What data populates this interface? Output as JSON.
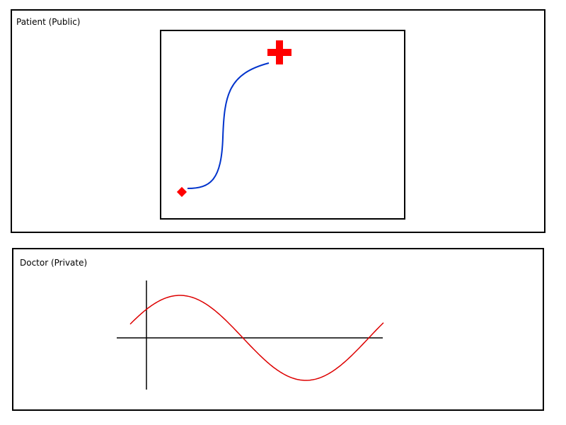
{
  "patient_panel": {
    "label": "Patient (Public)",
    "path_color": "#0033cc",
    "start_marker": {
      "icon": "diamond-marker-icon",
      "color": "#ff0000"
    },
    "target_marker": {
      "icon": "red-cross-icon",
      "color": "#ff0000"
    }
  },
  "doctor_panel": {
    "label": "Doctor (Private)",
    "axes_color": "#000000",
    "wave_color": "#dd0000"
  }
}
